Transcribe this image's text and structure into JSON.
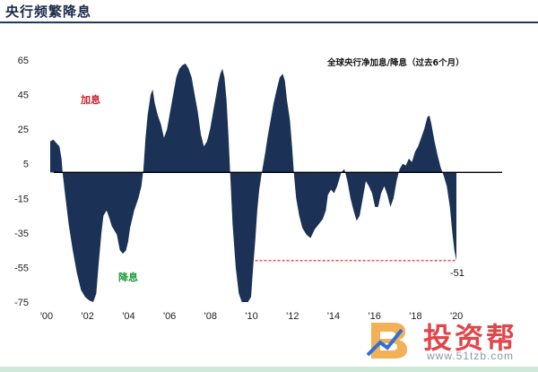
{
  "page": {
    "title": "央行频繁降息"
  },
  "chart_data": {
    "type": "area",
    "title": "全球央行净加息/降息（过去6个月）",
    "xlabel": "",
    "ylabel": "",
    "ylim": [
      -75,
      65
    ],
    "xlim": [
      2000,
      2020.3
    ],
    "yticks": [
      65,
      45,
      25,
      5,
      -15,
      -35,
      -55,
      -75
    ],
    "xticks": [
      {
        "value": 2000,
        "label": "'00"
      },
      {
        "value": 2002,
        "label": "'02"
      },
      {
        "value": 2004,
        "label": "'04"
      },
      {
        "value": 2006,
        "label": "'06"
      },
      {
        "value": 2008,
        "label": "'08"
      },
      {
        "value": 2010,
        "label": "'10"
      },
      {
        "value": 2012,
        "label": "'12"
      },
      {
        "value": 2014,
        "label": "'14"
      },
      {
        "value": 2016,
        "label": "'16"
      },
      {
        "value": 2018,
        "label": "'18"
      },
      {
        "value": 2020,
        "label": "'20"
      }
    ],
    "annotations": {
      "hike": {
        "text": "加息",
        "color": "#d0202a"
      },
      "cut": {
        "text": "降息",
        "color": "#1e9a3c"
      },
      "last_value": {
        "text": "-51",
        "value": -51
      },
      "reference_y": -51
    },
    "series_color": "#1b3155",
    "points": [
      [
        2000.0,
        18
      ],
      [
        2000.15,
        19
      ],
      [
        2000.3,
        17
      ],
      [
        2000.45,
        15
      ],
      [
        2000.55,
        8
      ],
      [
        2000.62,
        -2
      ],
      [
        2000.75,
        -15
      ],
      [
        2000.9,
        -30
      ],
      [
        2001.1,
        -45
      ],
      [
        2001.3,
        -58
      ],
      [
        2001.5,
        -68
      ],
      [
        2001.7,
        -72
      ],
      [
        2001.9,
        -74
      ],
      [
        2002.1,
        -75
      ],
      [
        2002.25,
        -70
      ],
      [
        2002.35,
        -55
      ],
      [
        2002.5,
        -35
      ],
      [
        2002.6,
        -25
      ],
      [
        2002.75,
        -22
      ],
      [
        2002.9,
        -27
      ],
      [
        2003.0,
        -31
      ],
      [
        2003.1,
        -33
      ],
      [
        2003.25,
        -36
      ],
      [
        2003.4,
        -45
      ],
      [
        2003.55,
        -47
      ],
      [
        2003.7,
        -45
      ],
      [
        2003.8,
        -40
      ],
      [
        2003.9,
        -32
      ],
      [
        2004.1,
        -22
      ],
      [
        2004.3,
        -15
      ],
      [
        2004.45,
        -8
      ],
      [
        2004.55,
        2
      ],
      [
        2004.65,
        20
      ],
      [
        2004.75,
        33
      ],
      [
        2004.9,
        45
      ],
      [
        2005.0,
        48
      ],
      [
        2005.1,
        40
      ],
      [
        2005.25,
        33
      ],
      [
        2005.4,
        28
      ],
      [
        2005.55,
        20
      ],
      [
        2005.7,
        25
      ],
      [
        2005.85,
        35
      ],
      [
        2006.0,
        45
      ],
      [
        2006.15,
        55
      ],
      [
        2006.3,
        60
      ],
      [
        2006.45,
        62
      ],
      [
        2006.6,
        63
      ],
      [
        2006.75,
        60
      ],
      [
        2006.9,
        55
      ],
      [
        2007.05,
        45
      ],
      [
        2007.2,
        35
      ],
      [
        2007.35,
        22
      ],
      [
        2007.5,
        15
      ],
      [
        2007.65,
        18
      ],
      [
        2007.8,
        25
      ],
      [
        2007.95,
        35
      ],
      [
        2008.1,
        45
      ],
      [
        2008.2,
        52
      ],
      [
        2008.3,
        57
      ],
      [
        2008.4,
        60
      ],
      [
        2008.5,
        55
      ],
      [
        2008.6,
        42
      ],
      [
        2008.7,
        20
      ],
      [
        2008.8,
        -5
      ],
      [
        2008.9,
        -30
      ],
      [
        2009.05,
        -55
      ],
      [
        2009.2,
        -70
      ],
      [
        2009.35,
        -75
      ],
      [
        2009.5,
        -75
      ],
      [
        2009.65,
        -75
      ],
      [
        2009.8,
        -72
      ],
      [
        2009.9,
        -55
      ],
      [
        2010.0,
        -40
      ],
      [
        2010.1,
        -22
      ],
      [
        2010.2,
        -10
      ],
      [
        2010.3,
        -2
      ],
      [
        2010.4,
        5
      ],
      [
        2010.5,
        12
      ],
      [
        2010.6,
        20
      ],
      [
        2010.75,
        30
      ],
      [
        2010.9,
        40
      ],
      [
        2011.05,
        48
      ],
      [
        2011.2,
        55
      ],
      [
        2011.35,
        57
      ],
      [
        2011.45,
        53
      ],
      [
        2011.55,
        42
      ],
      [
        2011.7,
        30
      ],
      [
        2011.8,
        15
      ],
      [
        2011.9,
        -2
      ],
      [
        2012.0,
        -15
      ],
      [
        2012.15,
        -25
      ],
      [
        2012.3,
        -32
      ],
      [
        2012.5,
        -36
      ],
      [
        2012.7,
        -38
      ],
      [
        2012.9,
        -33
      ],
      [
        2013.1,
        -30
      ],
      [
        2013.3,
        -27
      ],
      [
        2013.45,
        -22
      ],
      [
        2013.55,
        -13
      ],
      [
        2013.7,
        -10
      ],
      [
        2013.85,
        -12
      ],
      [
        2014.0,
        -8
      ],
      [
        2014.2,
        0
      ],
      [
        2014.35,
        2
      ],
      [
        2014.5,
        -5
      ],
      [
        2014.65,
        -15
      ],
      [
        2014.8,
        -22
      ],
      [
        2014.95,
        -28
      ],
      [
        2015.1,
        -25
      ],
      [
        2015.25,
        -15
      ],
      [
        2015.4,
        -5
      ],
      [
        2015.55,
        -8
      ],
      [
        2015.7,
        -12
      ],
      [
        2015.85,
        -20
      ],
      [
        2016.0,
        -20
      ],
      [
        2016.15,
        -12
      ],
      [
        2016.3,
        -8
      ],
      [
        2016.45,
        -13
      ],
      [
        2016.6,
        -20
      ],
      [
        2016.75,
        -15
      ],
      [
        2016.9,
        -5
      ],
      [
        2017.05,
        2
      ],
      [
        2017.2,
        5
      ],
      [
        2017.35,
        4
      ],
      [
        2017.5,
        8
      ],
      [
        2017.65,
        6
      ],
      [
        2017.8,
        12
      ],
      [
        2017.95,
        15
      ],
      [
        2018.1,
        20
      ],
      [
        2018.25,
        25
      ],
      [
        2018.4,
        32
      ],
      [
        2018.5,
        33
      ],
      [
        2018.6,
        28
      ],
      [
        2018.75,
        18
      ],
      [
        2018.9,
        10
      ],
      [
        2019.05,
        3
      ],
      [
        2019.2,
        -2
      ],
      [
        2019.35,
        -8
      ],
      [
        2019.5,
        -20
      ],
      [
        2019.62,
        -35
      ],
      [
        2019.72,
        -45
      ],
      [
        2019.82,
        -51
      ]
    ]
  },
  "watermark": {
    "name": "投资帮",
    "url": "www.51tzb.com"
  }
}
